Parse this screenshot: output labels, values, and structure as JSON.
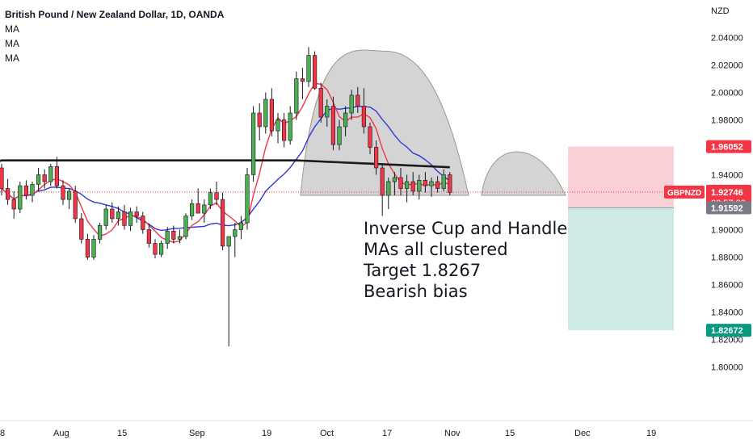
{
  "header": {
    "title": "British Pound / New Zealand Dollar, 1D, OANDA",
    "indicators": [
      "MA",
      "MA",
      "MA"
    ]
  },
  "price_scale": {
    "currency": "NZD"
  },
  "annotation": {
    "lines": [
      "Inverse Cup and Handle",
      "MAs all clustered",
      "Target 1.8267",
      "Bearish bias"
    ]
  },
  "price_labels": {
    "stop": "1.96052",
    "symbol": "GBPNZD",
    "last": "1.92746",
    "countdown": "08:57:09",
    "entry": "1.91592",
    "target": "1.82672"
  },
  "colors": {
    "up": "#4caf50",
    "down": "#f23645",
    "ma_fast": "#f23645",
    "ma_mid": "#2e39d6",
    "ma_slow": "#1a1a1a",
    "risk_zone": "#f9d1d4",
    "reward_zone": "#cdebe4",
    "pattern_fill": "#c9c9cb"
  },
  "chart_data": {
    "type": "candlestick",
    "title": "British Pound / New Zealand Dollar, 1D, OANDA",
    "ylim": [
      1.79,
      2.05
    ],
    "y_ticks": [
      "1.80000",
      "1.82000",
      "1.84000",
      "1.86000",
      "1.88000",
      "1.90000",
      "1.92000",
      "1.94000",
      "1.96000",
      "1.98000",
      "2.00000",
      "2.02000",
      "2.04000"
    ],
    "x_ticks": [
      "8",
      "Aug",
      "15",
      "Sep",
      "19",
      "Oct",
      "17",
      "Nov",
      "15",
      "Dec",
      "19"
    ],
    "grid": false,
    "candles": [
      [
        1.945,
        1.948,
        1.925,
        1.93
      ],
      [
        1.93,
        1.937,
        1.918,
        1.922
      ],
      [
        1.922,
        1.928,
        1.908,
        1.915
      ],
      [
        1.915,
        1.935,
        1.912,
        1.932
      ],
      [
        1.932,
        1.936,
        1.922,
        1.925
      ],
      [
        1.925,
        1.935,
        1.92,
        1.933
      ],
      [
        1.933,
        1.945,
        1.928,
        1.94
      ],
      [
        1.94,
        1.944,
        1.93,
        1.935
      ],
      [
        1.935,
        1.948,
        1.932,
        1.946
      ],
      [
        1.946,
        1.953,
        1.93,
        1.932
      ],
      [
        1.932,
        1.936,
        1.918,
        1.922
      ],
      [
        1.922,
        1.93,
        1.915,
        1.928
      ],
      [
        1.928,
        1.932,
        1.905,
        1.908
      ],
      [
        1.908,
        1.912,
        1.89,
        1.893
      ],
      [
        1.893,
        1.897,
        1.878,
        1.88
      ],
      [
        1.88,
        1.896,
        1.878,
        1.893
      ],
      [
        1.893,
        1.905,
        1.89,
        1.903
      ],
      [
        1.903,
        1.918,
        1.9,
        1.915
      ],
      [
        1.915,
        1.92,
        1.905,
        1.908
      ],
      [
        1.908,
        1.917,
        1.903,
        1.913
      ],
      [
        1.913,
        1.918,
        1.9,
        1.903
      ],
      [
        1.903,
        1.916,
        1.899,
        1.913
      ],
      [
        1.913,
        1.917,
        1.905,
        1.91
      ],
      [
        1.91,
        1.913,
        1.897,
        1.9
      ],
      [
        1.9,
        1.904,
        1.887,
        1.89
      ],
      [
        1.89,
        1.893,
        1.879,
        1.882
      ],
      [
        1.882,
        1.892,
        1.88,
        1.89
      ],
      [
        1.89,
        1.902,
        1.886,
        1.899
      ],
      [
        1.899,
        1.903,
        1.89,
        1.893
      ],
      [
        1.893,
        1.9,
        1.89,
        1.895
      ],
      [
        1.895,
        1.912,
        1.893,
        1.91
      ],
      [
        1.91,
        1.922,
        1.907,
        1.919
      ],
      [
        1.919,
        1.93,
        1.914,
        1.912
      ],
      [
        1.912,
        1.922,
        1.905,
        1.918
      ],
      [
        1.918,
        1.93,
        1.915,
        1.927
      ],
      [
        1.927,
        1.935,
        1.918,
        1.922
      ],
      [
        1.922,
        1.927,
        1.885,
        1.888
      ],
      [
        1.888,
        1.893,
        1.815,
        1.895
      ],
      [
        1.895,
        1.905,
        1.88,
        1.9
      ],
      [
        1.9,
        1.91,
        1.893,
        1.905
      ],
      [
        1.905,
        1.945,
        1.9,
        1.94
      ],
      [
        1.94,
        1.99,
        1.935,
        1.985
      ],
      [
        1.985,
        1.992,
        1.965,
        1.975
      ],
      [
        1.975,
        2.0,
        1.97,
        1.995
      ],
      [
        1.995,
        2.003,
        1.968,
        1.972
      ],
      [
        1.972,
        1.985,
        1.963,
        1.98
      ],
      [
        1.98,
        1.985,
        1.96,
        1.965
      ],
      [
        1.965,
        1.99,
        1.962,
        1.985
      ],
      [
        1.985,
        2.015,
        1.98,
        2.01
      ],
      [
        2.01,
        2.018,
        1.995,
        2.008
      ],
      [
        2.008,
        2.033,
        2.004,
        2.027
      ],
      [
        2.027,
        2.03,
        2.002,
        2.003
      ],
      [
        2.003,
        2.007,
        1.978,
        1.982
      ],
      [
        1.982,
        1.995,
        1.975,
        1.99
      ],
      [
        1.99,
        1.997,
        1.958,
        1.962
      ],
      [
        1.962,
        1.98,
        1.958,
        1.975
      ],
      [
        1.975,
        1.99,
        1.968,
        1.985
      ],
      [
        1.985,
        2.002,
        1.98,
        1.998
      ],
      [
        1.998,
        2.004,
        1.985,
        1.99
      ],
      [
        1.99,
        2.003,
        1.97,
        1.975
      ],
      [
        1.975,
        1.978,
        1.955,
        1.96
      ],
      [
        1.96,
        1.965,
        1.94,
        1.945
      ],
      [
        1.945,
        1.948,
        1.91,
        1.925
      ],
      [
        1.925,
        1.938,
        1.915,
        1.935
      ],
      [
        1.935,
        1.942,
        1.925,
        1.938
      ],
      [
        1.938,
        1.945,
        1.925,
        1.93
      ],
      [
        1.93,
        1.94,
        1.92,
        1.935
      ],
      [
        1.935,
        1.942,
        1.925,
        1.928
      ],
      [
        1.928,
        1.94,
        1.922,
        1.936
      ],
      [
        1.936,
        1.942,
        1.927,
        1.932
      ],
      [
        1.932,
        1.938,
        1.924,
        1.935
      ],
      [
        1.935,
        1.939,
        1.927,
        1.93
      ],
      [
        1.93,
        1.944,
        1.928,
        1.94
      ],
      [
        1.94,
        1.942,
        1.925,
        1.927
      ]
    ],
    "stop_level": 1.96052,
    "entry_level": 1.91592,
    "target_level": 1.82672,
    "last_price": 1.92746
  }
}
